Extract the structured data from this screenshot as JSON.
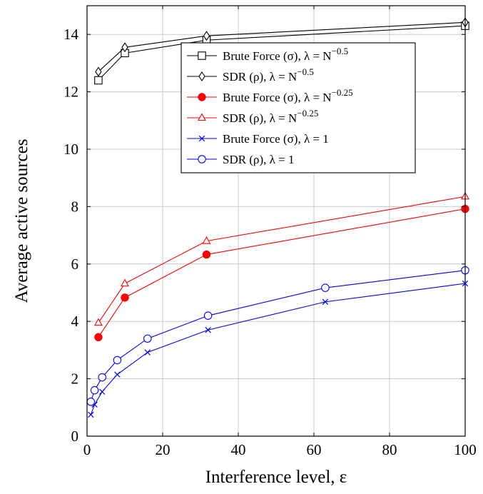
{
  "chart_data": {
    "type": "line",
    "xlabel": "Interference level, ε",
    "ylabel": "Average active sources",
    "xlim": [
      0,
      100
    ],
    "ylim": [
      0,
      15
    ],
    "xticks": [
      0,
      20,
      40,
      60,
      80,
      100
    ],
    "yticks": [
      0,
      2,
      4,
      6,
      8,
      10,
      12,
      14
    ],
    "grid": true,
    "legend_position": "upper-center",
    "series": [
      {
        "name": "Brute Force (σ), λ = N^{−0.5}",
        "label_main": "Brute Force (σ), λ = N",
        "label_exp": "−0.5",
        "color": "#000000",
        "marker": "square",
        "x": [
          3,
          10,
          31.6,
          100
        ],
        "y": [
          12.4,
          13.35,
          13.8,
          14.3
        ]
      },
      {
        "name": "SDR (ρ), λ = N^{−0.5}",
        "label_main": "SDR (ρ), λ = N",
        "label_exp": "−0.5",
        "color": "#000000",
        "marker": "diamond",
        "x": [
          3,
          10,
          31.6,
          100
        ],
        "y": [
          12.7,
          13.55,
          13.95,
          14.42
        ]
      },
      {
        "name": "Brute Force (σ), λ = N^{−0.25}",
        "label_main": "Brute Force (σ), λ = N",
        "label_exp": "−0.25",
        "color": "#ff0000",
        "marker": "filled-circle",
        "x": [
          3,
          10,
          31.6,
          100
        ],
        "y": [
          3.45,
          4.83,
          6.33,
          7.92
        ]
      },
      {
        "name": "SDR (ρ), λ = N^{−0.25}",
        "label_main": "SDR (ρ), λ = N",
        "label_exp": "−0.25",
        "color": "#ff0000",
        "marker": "triangle",
        "x": [
          3,
          10,
          31.6,
          100
        ],
        "y": [
          3.95,
          5.32,
          6.8,
          8.35
        ]
      },
      {
        "name": "Brute Force (σ), λ = 1",
        "label_main": "Brute Force (σ), λ = 1",
        "label_exp": "",
        "color": "#0000ff",
        "marker": "cross",
        "x": [
          1,
          2,
          4,
          8,
          16,
          32,
          63,
          100
        ],
        "y": [
          0.75,
          1.1,
          1.55,
          2.15,
          2.92,
          3.7,
          4.68,
          5.32
        ]
      },
      {
        "name": "SDR (ρ), λ = 1",
        "label_main": "SDR (ρ), λ = 1",
        "label_exp": "",
        "color": "#0000ff",
        "marker": "circle",
        "x": [
          1,
          2,
          4,
          8,
          16,
          32,
          63,
          100
        ],
        "y": [
          1.2,
          1.6,
          2.05,
          2.65,
          3.4,
          4.2,
          5.17,
          5.78
        ]
      }
    ]
  }
}
